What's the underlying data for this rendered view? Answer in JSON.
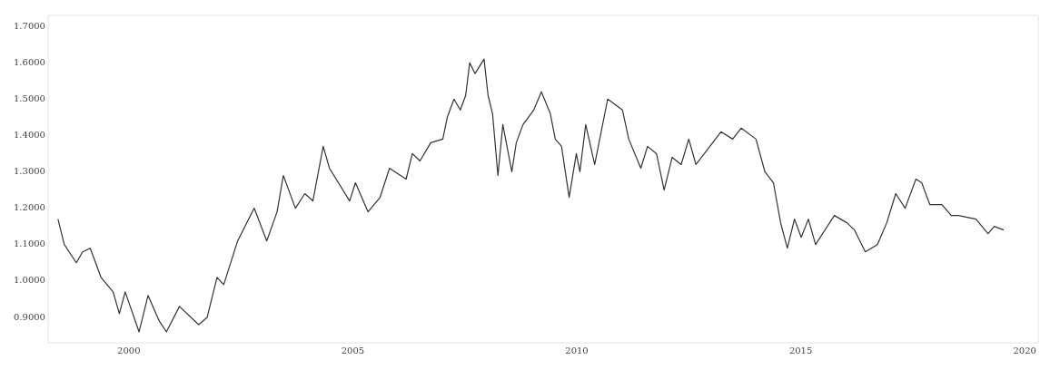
{
  "chart_data": {
    "type": "line",
    "x": [
      1998.42,
      1998.56,
      1998.83,
      1998.97,
      1999.14,
      1999.38,
      1999.65,
      1999.79,
      1999.92,
      2000.23,
      2000.43,
      2000.68,
      2000.84,
      2001.13,
      2001.56,
      2001.75,
      2001.97,
      2002.12,
      2002.43,
      2002.8,
      2003.08,
      2003.31,
      2003.45,
      2003.72,
      2003.93,
      2004.11,
      2004.34,
      2004.48,
      2004.93,
      2005.06,
      2005.34,
      2005.61,
      2005.82,
      2006.19,
      2006.33,
      2006.5,
      2006.74,
      2007.01,
      2007.11,
      2007.26,
      2007.4,
      2007.52,
      2007.61,
      2007.73,
      2007.93,
      2008.02,
      2008.12,
      2008.24,
      2008.35,
      2008.55,
      2008.65,
      2008.8,
      2009.04,
      2009.21,
      2009.41,
      2009.52,
      2009.66,
      2009.83,
      2009.99,
      2010.07,
      2010.2,
      2010.4,
      2010.69,
      2011.02,
      2011.16,
      2011.43,
      2011.58,
      2011.78,
      2011.95,
      2012.13,
      2012.33,
      2012.5,
      2012.66,
      2012.91,
      2013.22,
      2013.48,
      2013.67,
      2014.0,
      2014.2,
      2014.39,
      2014.55,
      2014.7,
      2014.86,
      2015.01,
      2015.17,
      2015.33,
      2015.75,
      2016.03,
      2016.2,
      2016.44,
      2016.71,
      2016.92,
      2017.12,
      2017.33,
      2017.57,
      2017.7,
      2017.88,
      2018.15,
      2018.36,
      2018.52,
      2018.91,
      2019.18,
      2019.32,
      2019.53
    ],
    "series": [
      {
        "color": "#333333",
        "values": [
          1.17,
          1.1,
          1.05,
          1.08,
          1.09,
          1.01,
          0.97,
          0.91,
          0.97,
          0.86,
          0.96,
          0.89,
          0.86,
          0.93,
          0.88,
          0.9,
          1.01,
          0.99,
          1.11,
          1.2,
          1.11,
          1.19,
          1.29,
          1.2,
          1.24,
          1.22,
          1.37,
          1.31,
          1.22,
          1.27,
          1.19,
          1.23,
          1.31,
          1.28,
          1.35,
          1.33,
          1.38,
          1.39,
          1.45,
          1.5,
          1.47,
          1.51,
          1.6,
          1.57,
          1.61,
          1.51,
          1.46,
          1.29,
          1.43,
          1.3,
          1.38,
          1.43,
          1.47,
          1.52,
          1.46,
          1.39,
          1.37,
          1.23,
          1.35,
          1.3,
          1.43,
          1.32,
          1.5,
          1.47,
          1.39,
          1.31,
          1.37,
          1.35,
          1.25,
          1.34,
          1.32,
          1.39,
          1.32,
          1.36,
          1.41,
          1.39,
          1.42,
          1.39,
          1.3,
          1.27,
          1.16,
          1.09,
          1.17,
          1.12,
          1.17,
          1.1,
          1.18,
          1.16,
          1.14,
          1.08,
          1.1,
          1.16,
          1.24,
          1.2,
          1.28,
          1.27,
          1.21,
          1.21,
          1.18,
          1.18,
          1.17,
          1.13,
          1.15,
          1.14
        ]
      }
    ],
    "xlim": [
      1998.2,
      2020.3
    ],
    "xticks": [
      2000,
      2005,
      2010,
      2015,
      2020
    ],
    "ylim": [
      0.83,
      1.73
    ],
    "yticks": [
      {
        "value": 0.9,
        "label": "0.9000"
      },
      {
        "value": 1.0,
        "label": "1.0000"
      },
      {
        "value": 1.1,
        "label": "1.1000"
      },
      {
        "value": 1.2,
        "label": "1.2000"
      },
      {
        "value": 1.3,
        "label": "1.3000"
      },
      {
        "value": 1.4,
        "label": "1.4000"
      },
      {
        "value": 1.5,
        "label": "1.5000"
      },
      {
        "value": 1.6,
        "label": "1.6000"
      },
      {
        "value": 1.7,
        "label": "1.7000"
      }
    ],
    "grid": false,
    "legend": false,
    "marker": "none",
    "line_style": "solid"
  }
}
